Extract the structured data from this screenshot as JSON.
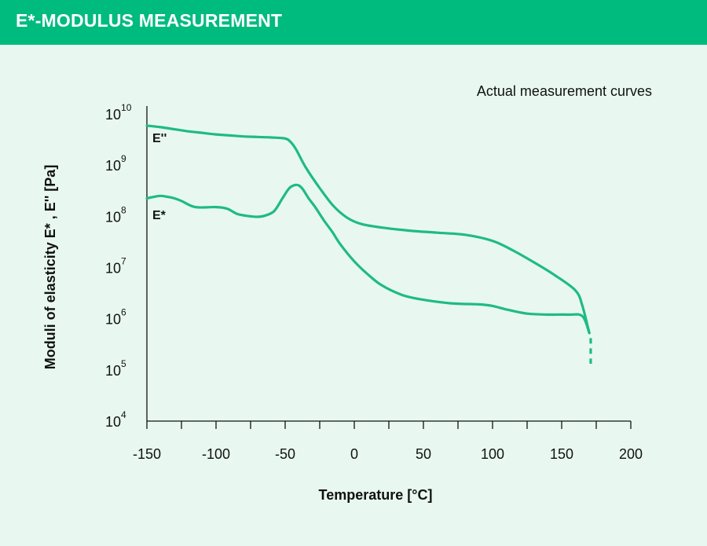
{
  "header": {
    "title": "E*-MODULUS MEASUREMENT"
  },
  "colors": {
    "accent": "#00bb7e",
    "background": "#e8f8f0",
    "curve": "#1fbb82",
    "text": "#111111"
  },
  "chart_data": {
    "type": "line",
    "title": "",
    "annotation": "Actual measurement curves",
    "xlabel": "Temperature [°C]",
    "ylabel": "Moduli of elasticity E* , E'' [Pa]",
    "xlim": [
      -150,
      200
    ],
    "ylim_log10": [
      4,
      10
    ],
    "y_scale": "log",
    "x_ticks": [
      -150,
      -100,
      -50,
      0,
      50,
      100,
      150,
      200
    ],
    "x_tick_labels": [
      "-150",
      "-100",
      "-50",
      "0",
      "50",
      "100",
      "150",
      "200"
    ],
    "y_ticks": [
      {
        "base": "10",
        "exp": "10"
      },
      {
        "base": "10",
        "exp": "9"
      },
      {
        "base": "10",
        "exp": "8"
      },
      {
        "base": "10",
        "exp": "7"
      },
      {
        "base": "10",
        "exp": "6"
      },
      {
        "base": "10",
        "exp": "5"
      },
      {
        "base": "10",
        "exp": "4"
      }
    ],
    "grid": false,
    "series": [
      {
        "name": "E''",
        "x": [
          -150,
          -140,
          -130,
          -120,
          -110,
          -100,
          -90,
          -80,
          -70,
          -60,
          -50,
          -46,
          -42,
          -35,
          -25,
          -15,
          -5,
          5,
          20,
          40,
          60,
          80,
          100,
          115,
          130,
          145,
          160,
          165,
          170
        ],
        "log10_y": [
          9.77,
          9.74,
          9.7,
          9.66,
          9.63,
          9.6,
          9.58,
          9.56,
          9.55,
          9.54,
          9.52,
          9.45,
          9.3,
          8.95,
          8.55,
          8.2,
          7.97,
          7.85,
          7.78,
          7.72,
          7.68,
          7.64,
          7.52,
          7.33,
          7.1,
          6.85,
          6.55,
          6.25,
          5.72
        ]
      },
      {
        "name": "E*",
        "x": [
          -150,
          -145,
          -140,
          -135,
          -130,
          -125,
          -115,
          -100,
          -92,
          -85,
          -78,
          -70,
          -65,
          -58,
          -52,
          -47,
          -43,
          -40,
          -37,
          -33,
          -28,
          -22,
          -16,
          -10,
          0,
          10,
          20,
          35,
          50,
          70,
          90,
          100,
          110,
          125,
          140,
          155,
          165,
          170
        ],
        "log10_y": [
          8.35,
          8.38,
          8.4,
          8.38,
          8.35,
          8.3,
          8.18,
          8.18,
          8.15,
          8.05,
          8.01,
          7.99,
          8.01,
          8.1,
          8.35,
          8.55,
          8.61,
          8.6,
          8.52,
          8.35,
          8.17,
          7.92,
          7.7,
          7.45,
          7.12,
          6.86,
          6.65,
          6.46,
          6.37,
          6.3,
          6.28,
          6.25,
          6.18,
          6.1,
          6.08,
          6.08,
          6.05,
          5.72
        ]
      }
    ],
    "dashed_tail": {
      "x": 171,
      "log10_y_from": 5.62,
      "log10_y_to": 5.12
    }
  }
}
